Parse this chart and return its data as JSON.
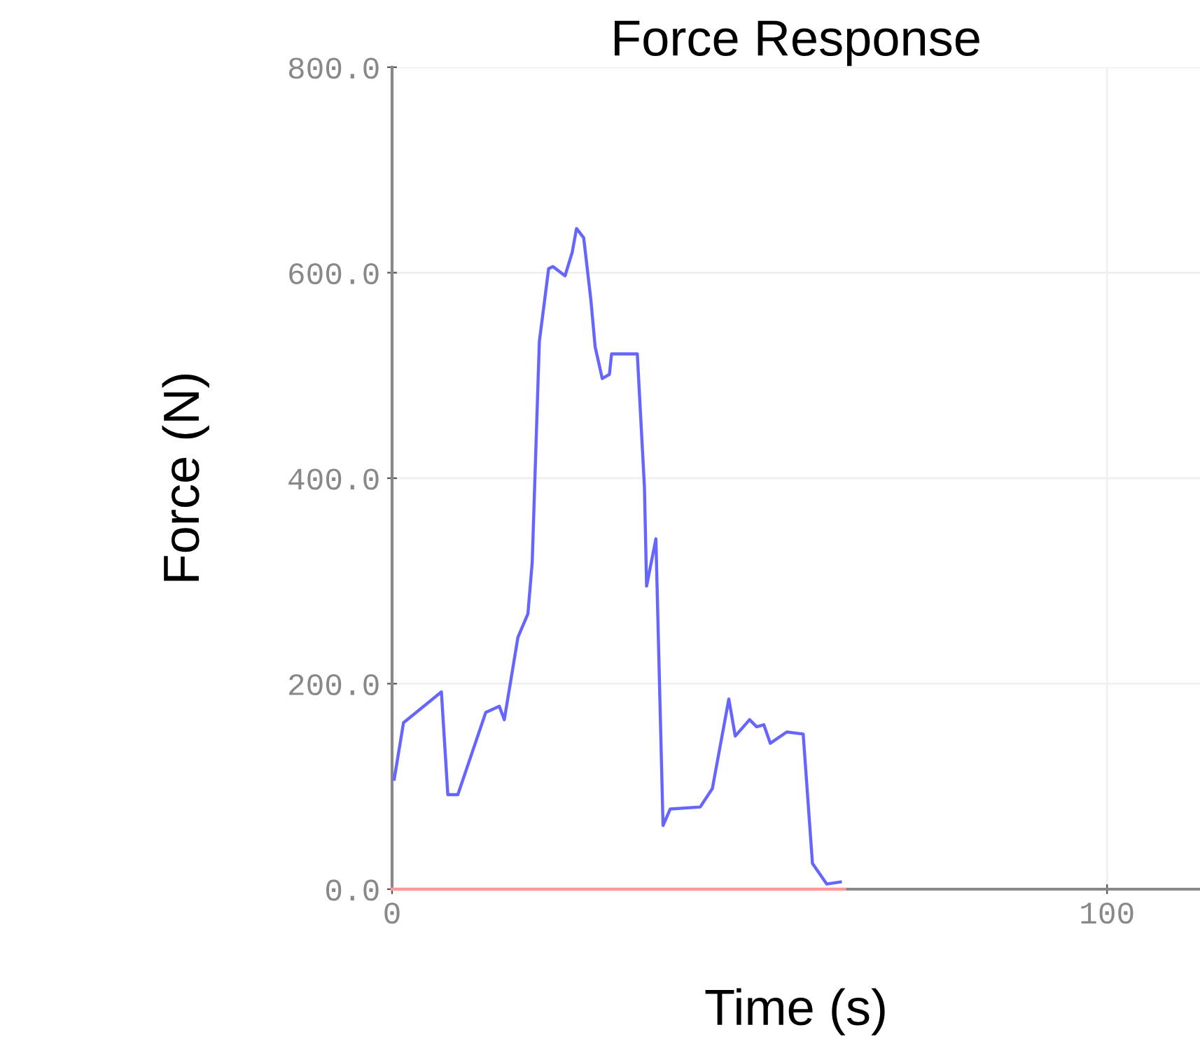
{
  "chart_data": {
    "type": "line",
    "title": "Force Response",
    "xlabel": "Time (s)",
    "ylabel": "Force (N)",
    "xlim": [
      0,
      113
    ],
    "ylim": [
      0,
      800
    ],
    "xticks": [
      0,
      100
    ],
    "yticks": [
      {
        "value": 0,
        "label": "0.0"
      },
      {
        "value": 200,
        "label": "200.0"
      },
      {
        "value": 400,
        "label": "400.0"
      },
      {
        "value": 600,
        "label": "600.0"
      },
      {
        "value": 800,
        "label": "800.0"
      }
    ],
    "grid": true,
    "marker": "none",
    "line_style": "solid",
    "series": [
      {
        "color": "#ff9999",
        "x": [
          0,
          63.3
        ],
        "values": [
          0,
          0
        ]
      },
      {
        "color": "#6666ff",
        "x": [
          0.3,
          1.6,
          6.9,
          7.8,
          9.2,
          13.1,
          15.0,
          15.7,
          17.6,
          19.0,
          19.6,
          20.6,
          21.9,
          22.5,
          24.2,
          25.2,
          25.8,
          26.8,
          27.8,
          28.4,
          29.4,
          30.4,
          30.7,
          34.3,
          35.3,
          35.6,
          36.9,
          37.9,
          38.9,
          43.1,
          44.8,
          47.1,
          48.0,
          50.0,
          51.0,
          52.0,
          52.9,
          55.2,
          57.5,
          58.8,
          60.8,
          62.7
        ],
        "values": [
          107,
          162,
          192,
          92,
          92,
          172,
          178,
          165,
          245,
          268,
          318,
          533,
          604,
          606,
          597,
          620,
          643,
          634,
          574,
          528,
          497,
          501,
          521,
          521,
          391,
          295,
          341,
          62,
          78,
          80,
          98,
          185,
          149,
          165,
          158,
          160,
          142,
          153,
          151,
          25,
          5,
          7
        ]
      }
    ]
  }
}
